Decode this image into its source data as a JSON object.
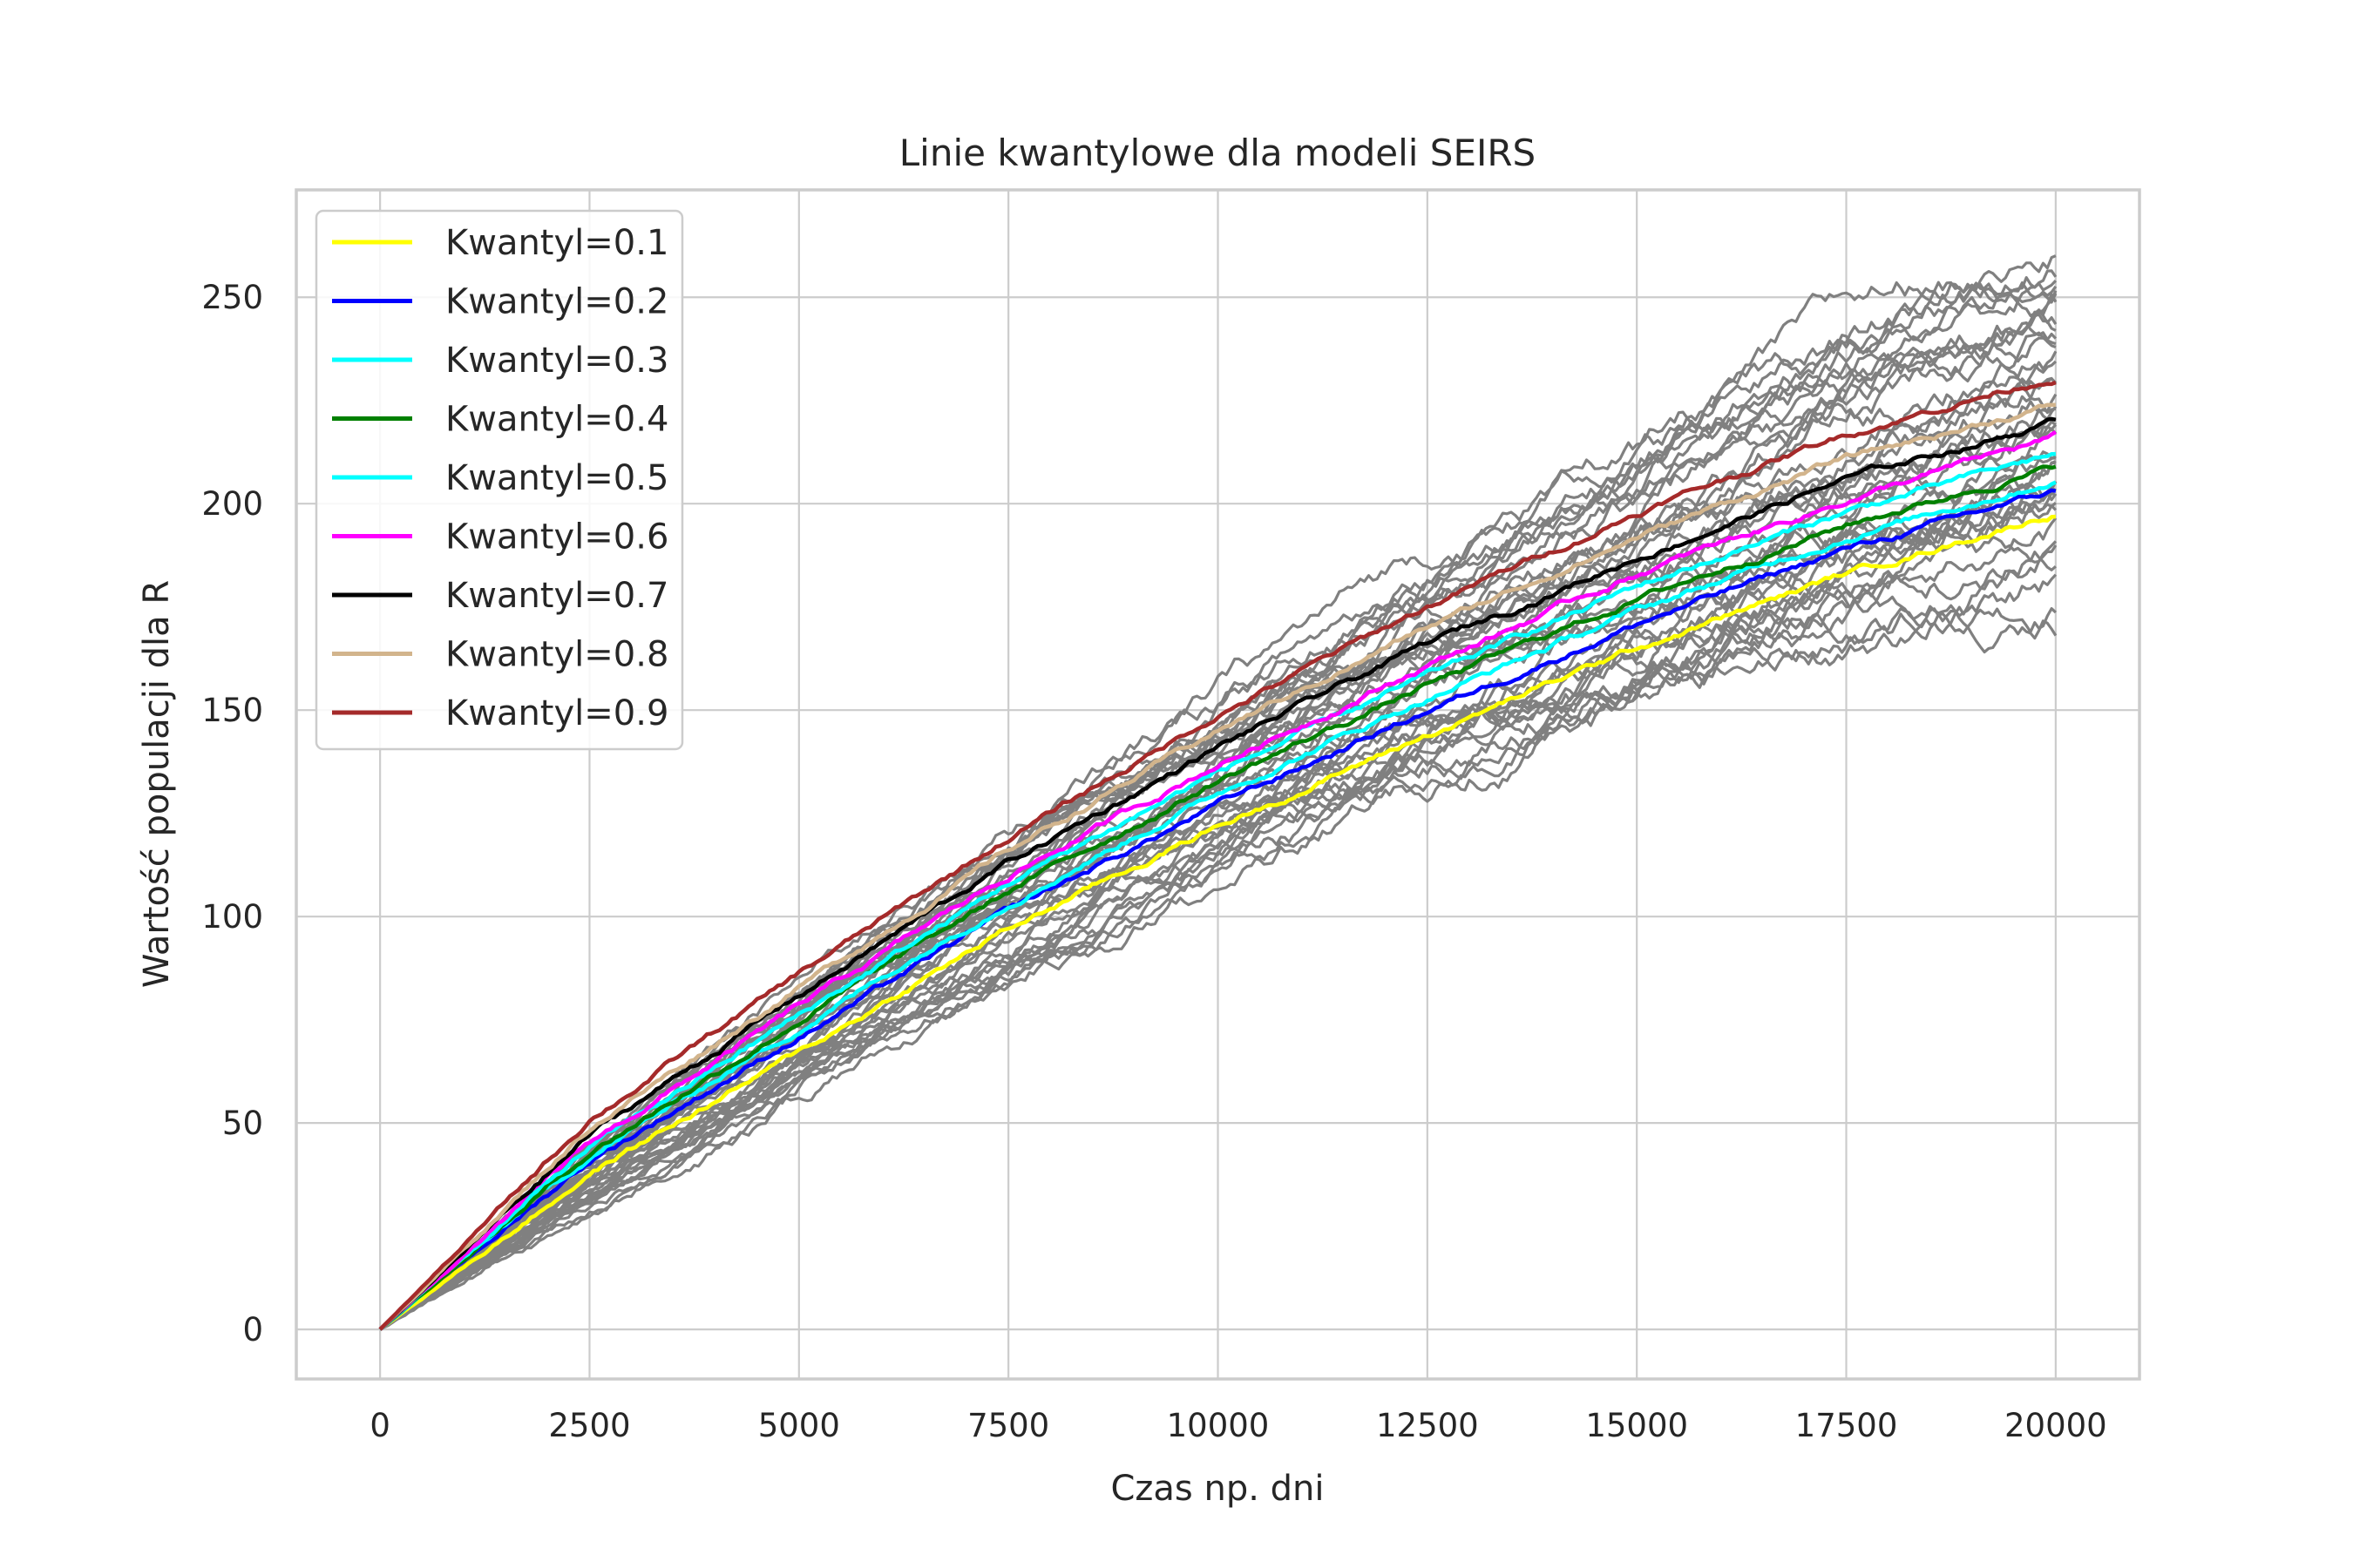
{
  "chart_data": {
    "type": "line",
    "title": "Linie kwantylowe dla modeli SEIRS",
    "xlabel": "Czas np. dni",
    "ylabel": "Wartość populacji dla R",
    "xlim": [
      -1000,
      21000
    ],
    "ylim": [
      -12,
      276
    ],
    "xticks": [
      0,
      2500,
      5000,
      7500,
      10000,
      12500,
      15000,
      17500,
      20000
    ],
    "xtick_labels": [
      "0",
      "2500",
      "5000",
      "7500",
      "10000",
      "12500",
      "15000",
      "17500",
      "20000"
    ],
    "yticks": [
      0,
      50,
      100,
      150,
      200,
      250
    ],
    "ytick_labels": [
      "0",
      "50",
      "100",
      "150",
      "200",
      "250"
    ],
    "grid": true,
    "legend_position": "top-left",
    "background_series": {
      "color": "#808080",
      "count": 40,
      "x": [
        0,
        2500,
        5000,
        7500,
        10000,
        12500,
        15000,
        17500,
        20000
      ],
      "value_range_at_end": [
        183,
        263
      ]
    },
    "series": [
      {
        "name": "Kwantyl=0.1",
        "color": "#ffff00",
        "x": [
          0,
          2500,
          5000,
          7500,
          10000,
          12500,
          15000,
          17500,
          20000
        ],
        "values": [
          0,
          38,
          67,
          97,
          122,
          144,
          165,
          183,
          198
        ]
      },
      {
        "name": "Kwantyl=0.2",
        "color": "#0000ff",
        "x": [
          0,
          2500,
          5000,
          7500,
          10000,
          12500,
          15000,
          17500,
          20000
        ],
        "values": [
          0,
          41,
          71,
          101,
          127,
          150,
          171,
          189,
          203
        ]
      },
      {
        "name": "Kwantyl=0.3",
        "color": "#00ffff",
        "x": [
          0,
          2500,
          5000,
          7500,
          10000,
          12500,
          15000,
          17500,
          20000
        ],
        "values": [
          0,
          42,
          73,
          104,
          130,
          153,
          174,
          192,
          206
        ]
      },
      {
        "name": "Kwantyl=0.4",
        "color": "#008000",
        "x": [
          0,
          2500,
          5000,
          7500,
          10000,
          12500,
          15000,
          17500,
          20000
        ],
        "values": [
          0,
          43,
          75,
          106,
          133,
          156,
          177,
          195,
          209
        ]
      },
      {
        "name": "Kwantyl=0.5",
        "color": "#00ffff",
        "x": [
          0,
          2500,
          5000,
          7500,
          10000,
          12500,
          15000,
          17500,
          20000
        ],
        "values": [
          0,
          44,
          76,
          108,
          135,
          158,
          180,
          198,
          212
        ]
      },
      {
        "name": "Kwantyl=0.6",
        "color": "#ff00ff",
        "x": [
          0,
          2500,
          5000,
          7500,
          10000,
          12500,
          15000,
          17500,
          20000
        ],
        "values": [
          0,
          45,
          78,
          110,
          137,
          161,
          183,
          201,
          216
        ]
      },
      {
        "name": "Kwantyl=0.7",
        "color": "#000000",
        "x": [
          0,
          2500,
          5000,
          7500,
          10000,
          12500,
          15000,
          17500,
          20000
        ],
        "values": [
          0,
          47,
          81,
          113,
          141,
          166,
          187,
          206,
          220
        ]
      },
      {
        "name": "Kwantyl=0.8",
        "color": "#d2b48c",
        "x": [
          0,
          2500,
          5000,
          7500,
          10000,
          12500,
          15000,
          17500,
          20000
        ],
        "values": [
          0,
          49,
          83,
          116,
          145,
          170,
          192,
          211,
          224
        ]
      },
      {
        "name": "Kwantyl=0.9",
        "color": "#a52a2a",
        "x": [
          0,
          2500,
          5000,
          7500,
          10000,
          12500,
          15000,
          17500,
          20000
        ],
        "values": [
          0,
          51,
          86,
          119,
          149,
          175,
          198,
          217,
          231
        ]
      }
    ]
  }
}
